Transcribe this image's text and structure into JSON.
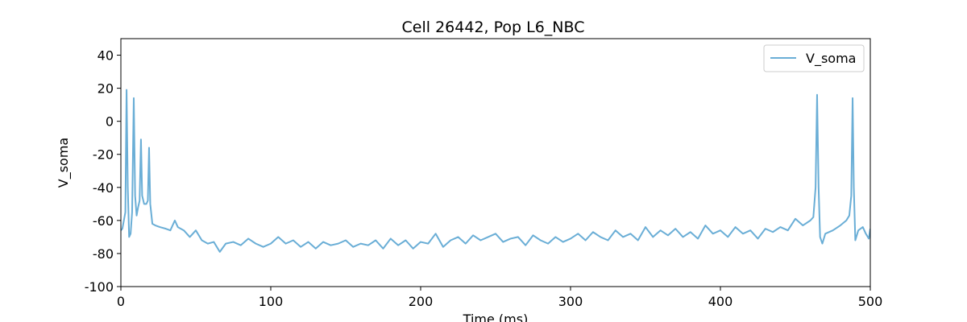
{
  "chart_data": {
    "type": "line",
    "title": "Cell 26442, Pop L6_NBC",
    "xlabel": "Time (ms)",
    "ylabel": "V_soma",
    "xlim": [
      0,
      500
    ],
    "ylim": [
      -100,
      50
    ],
    "xticks": [
      0,
      100,
      200,
      300,
      400,
      500
    ],
    "yticks": [
      -100,
      -80,
      -60,
      -40,
      -20,
      0,
      20,
      40
    ],
    "legend": "upper right",
    "x": [
      0,
      1,
      2,
      3,
      3.8,
      4.6,
      5.5,
      6.5,
      7.5,
      8.6,
      9.5,
      10.5,
      11.5,
      12.5,
      13.4,
      14.2,
      15.5,
      17,
      18,
      18.8,
      19.6,
      21,
      23,
      26,
      30,
      33,
      36,
      38,
      42,
      46,
      50,
      54,
      58,
      62,
      66,
      70,
      75,
      80,
      85,
      90,
      95,
      100,
      105,
      110,
      115,
      120,
      125,
      130,
      135,
      140,
      145,
      150,
      155,
      160,
      165,
      170,
      175,
      180,
      185,
      190,
      195,
      200,
      205,
      210,
      215,
      220,
      225,
      230,
      235,
      240,
      245,
      250,
      255,
      260,
      265,
      270,
      275,
      280,
      285,
      290,
      295,
      300,
      305,
      310,
      315,
      320,
      325,
      330,
      335,
      340,
      345,
      350,
      355,
      360,
      365,
      370,
      375,
      380,
      385,
      390,
      395,
      400,
      405,
      410,
      415,
      420,
      425,
      430,
      435,
      440,
      445,
      450,
      455,
      460,
      462,
      463.5,
      464.5,
      465.5,
      466.5,
      468,
      470,
      475,
      480,
      484,
      486,
      487.3,
      488.2,
      489,
      490,
      492,
      495,
      497,
      499,
      500
    ],
    "series": [
      {
        "name": "V_soma",
        "color": "#6aaed6",
        "values": [
          -66,
          -65,
          -60,
          -55,
          19,
          -40,
          -70,
          -68,
          -55,
          14,
          -45,
          -57,
          -52,
          -48,
          -11,
          -45,
          -50,
          -50,
          -48,
          -16,
          -50,
          -62,
          -63,
          -64,
          -65,
          -66,
          -60,
          -64,
          -66,
          -70,
          -66,
          -72,
          -74,
          -73,
          -79,
          -74,
          -73,
          -75,
          -71,
          -74,
          -76,
          -74,
          -70,
          -74,
          -72,
          -76,
          -73,
          -77,
          -73,
          -75,
          -74,
          -72,
          -76,
          -74,
          -75,
          -72,
          -77,
          -71,
          -75,
          -72,
          -77,
          -73,
          -74,
          -68,
          -76,
          -72,
          -70,
          -74,
          -69,
          -72,
          -70,
          -68,
          -73,
          -71,
          -70,
          -75,
          -69,
          -72,
          -74,
          -70,
          -73,
          -71,
          -68,
          -72,
          -67,
          -70,
          -72,
          -66,
          -70,
          -68,
          -72,
          -64,
          -70,
          -66,
          -69,
          -65,
          -70,
          -67,
          -71,
          -63,
          -68,
          -66,
          -70,
          -64,
          -68,
          -66,
          -71,
          -65,
          -67,
          -64,
          -66,
          -59,
          -63,
          -60,
          -58,
          -40,
          16,
          -40,
          -70,
          -74,
          -68,
          -66,
          -63,
          -60,
          -57,
          -45,
          14,
          -40,
          -72,
          -66,
          -64,
          -68,
          -71,
          -65
        ]
      }
    ]
  }
}
